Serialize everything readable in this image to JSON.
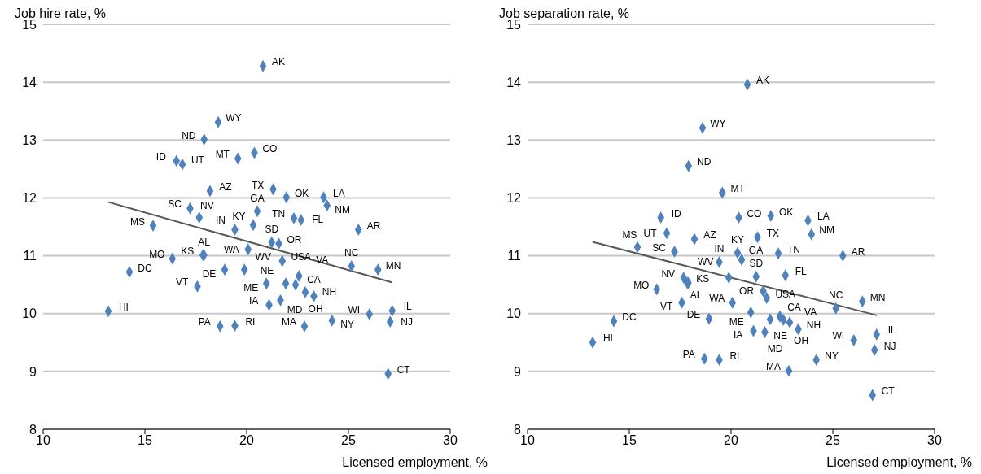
{
  "chart_data": [
    {
      "type": "scatter",
      "ylabel": "Job hire rate, %",
      "xlabel": "Licensed employment, %",
      "xlim": [
        10,
        30
      ],
      "xticks": [
        10,
        15,
        20,
        25,
        30
      ],
      "ylim": [
        8,
        15
      ],
      "yticks": [
        8,
        9,
        10,
        11,
        12,
        13,
        14,
        15
      ],
      "grid": "y",
      "marker": "diamond",
      "series": [
        {
          "color": "#4f81bd",
          "x": [
            20.8,
            18.6,
            17.91,
            16.55,
            16.84,
            19.57,
            20.38,
            18.2,
            17.22,
            17.67,
            15.4,
            16.35,
            17.85,
            17.9,
            17.58,
            13.2,
            14.24,
            19.42,
            20.32,
            20.52,
            20.07,
            18.92,
            19.89,
            18.69,
            19.42,
            21.3,
            21.95,
            22.32,
            22.67,
            21.23,
            21.58,
            21.75,
            23.78,
            23.95,
            25.49,
            25.15,
            26.45,
            26.03,
            27.15,
            27.05,
            26.95,
            24.19,
            22.84,
            20.97,
            21.1,
            21.66,
            23.3,
            21.92,
            22.4,
            22.57,
            22.88
          ],
          "values": [
            14.28,
            13.31,
            13.01,
            12.64,
            12.58,
            12.68,
            12.78,
            12.12,
            11.82,
            11.66,
            11.52,
            10.95,
            11.01,
            11.01,
            10.47,
            10.04,
            10.72,
            11.45,
            11.53,
            11.77,
            11.11,
            10.76,
            10.76,
            9.78,
            9.79,
            12.15,
            12.01,
            11.65,
            11.62,
            11.23,
            11.21,
            10.91,
            12.01,
            11.87,
            11.45,
            10.82,
            10.76,
            9.99,
            10.05,
            9.86,
            8.96,
            9.88,
            9.78,
            10.52,
            10.15,
            10.23,
            10.3,
            10.52,
            10.5,
            10.65,
            10.37
          ],
          "value_labels": [
            "AK",
            "WY",
            "ND",
            "ID",
            "UT",
            "MT",
            "CO",
            "AZ",
            "SC",
            "NV",
            "MS",
            "MO",
            "KS",
            "AL",
            "VT",
            "HI",
            "DC",
            "IN",
            "KY",
            "GA",
            "WA",
            "DE",
            "WV",
            "PA",
            "RI",
            "TX",
            "OK",
            "TN",
            "FL",
            "SD",
            "OR",
            "USA",
            "LA",
            "NM",
            "AR",
            "NC",
            "MN",
            "WI",
            "IL",
            "NJ",
            "CT",
            "NY",
            "MA",
            "ME",
            "IA",
            "MD",
            "NH",
            "NE",
            "CA",
            "VA",
            "OH"
          ]
        },
        {
          "type": "line",
          "marker": "none",
          "color": "#595959",
          "x": [
            13.18,
            27.13
          ],
          "values": [
            11.93,
            10.54
          ]
        }
      ]
    },
    {
      "type": "scatter",
      "ylabel": "Job separation rate, %",
      "xlabel": "Licensed employment, %",
      "xlim": [
        10,
        30
      ],
      "xticks": [
        10,
        15,
        20,
        25,
        30
      ],
      "ylim": [
        8,
        15
      ],
      "yticks": [
        8,
        9,
        10,
        11,
        12,
        13,
        14,
        15
      ],
      "grid": "y",
      "marker": "diamond",
      "series": [
        {
          "color": "#4f81bd",
          "x": [
            20.8,
            18.6,
            17.91,
            16.55,
            16.84,
            19.57,
            20.38,
            18.2,
            17.22,
            17.67,
            15.4,
            16.35,
            17.85,
            17.9,
            17.58,
            13.2,
            14.24,
            19.42,
            20.32,
            20.52,
            20.07,
            18.92,
            19.89,
            18.69,
            19.42,
            21.3,
            21.95,
            22.32,
            22.67,
            21.23,
            21.58,
            21.75,
            23.78,
            23.95,
            25.49,
            25.15,
            26.45,
            26.03,
            27.15,
            27.05,
            26.95,
            24.19,
            22.84,
            20.97,
            21.1,
            21.66,
            23.3,
            21.92,
            22.4,
            22.57,
            22.88
          ],
          "values": [
            13.96,
            13.21,
            12.55,
            11.66,
            11.39,
            12.09,
            11.66,
            11.29,
            11.07,
            10.62,
            11.15,
            10.42,
            10.53,
            10.53,
            10.19,
            9.5,
            9.87,
            10.89,
            11.05,
            10.93,
            10.19,
            9.91,
            10.62,
            9.22,
            9.2,
            11.32,
            11.69,
            11.04,
            10.66,
            10.64,
            10.39,
            10.27,
            11.61,
            11.37,
            11.0,
            10.09,
            10.21,
            9.54,
            9.64,
            9.37,
            8.59,
            9.2,
            9.01,
            10.02,
            9.7,
            9.68,
            9.73,
            9.9,
            9.95,
            9.89,
            9.85
          ],
          "value_labels": [
            "AK",
            "WY",
            "ND",
            "ID",
            "UT",
            "MT",
            "CO",
            "AZ",
            "SC",
            "NV",
            "MS",
            "MO",
            "KS",
            "AL",
            "VT",
            "HI",
            "DC",
            "IN",
            "KY",
            "GA",
            "WA",
            "DE",
            "WV",
            "PA",
            "RI",
            "TX",
            "OK",
            "TN",
            "FL",
            "SD",
            "OR",
            "USA",
            "LA",
            "NM",
            "AR",
            "NC",
            "MN",
            "WI",
            "IL",
            "NJ",
            "CT",
            "NY",
            "MA",
            "ME",
            "IA",
            "MD",
            "NH",
            "NE",
            "CA",
            "VA",
            "OH"
          ]
        },
        {
          "type": "line",
          "marker": "none",
          "color": "#595959",
          "x": [
            13.19,
            27.16
          ],
          "values": [
            11.24,
            9.97
          ]
        }
      ]
    }
  ]
}
